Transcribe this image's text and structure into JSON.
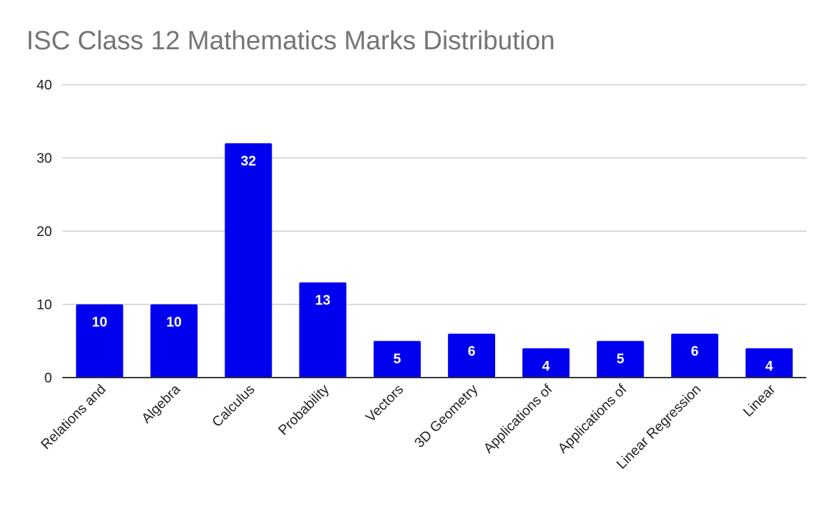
{
  "chart_data": {
    "type": "bar",
    "title": "ISC Class 12 Mathematics Marks Distribution",
    "categories": [
      "Relations and",
      "Algebra",
      "Calculus",
      "Probability",
      "Vectors",
      "3D Geometry",
      "Applications of",
      "Applications of",
      "Linear Regression",
      "Linear"
    ],
    "values": [
      10,
      10,
      32,
      13,
      5,
      6,
      4,
      5,
      6,
      4
    ],
    "yticks": [
      0,
      10,
      20,
      30,
      40
    ],
    "ylim": [
      0,
      40
    ],
    "xlabel": "",
    "ylabel": "",
    "grid": true,
    "legend": "none",
    "data_labels": true,
    "bar_color": "#0000ee",
    "gridline_color": "#cccccc",
    "axis_color": "#333333"
  }
}
